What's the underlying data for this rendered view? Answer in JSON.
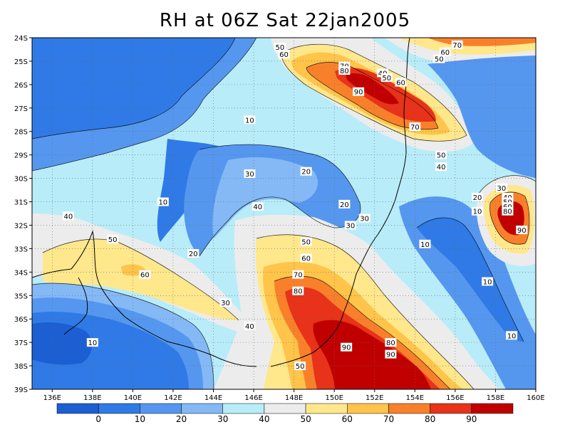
{
  "chart_data": {
    "type": "heatmap",
    "title": "RH at 06Z Sat 22jan2005",
    "x_ticks": [
      "136E",
      "138E",
      "140E",
      "142E",
      "144E",
      "146E",
      "148E",
      "150E",
      "152E",
      "154E",
      "156E",
      "158E",
      "160E"
    ],
    "y_ticks": [
      "24S",
      "25S",
      "26S",
      "27S",
      "28S",
      "29S",
      "30S",
      "31S",
      "32S",
      "33S",
      "34S",
      "35S",
      "36S",
      "37S",
      "38S",
      "39S"
    ],
    "xlim": [
      135,
      160
    ],
    "ylim": [
      -39,
      -24
    ],
    "grid": true,
    "colorbar": {
      "levels": [
        0,
        10,
        20,
        30,
        40,
        50,
        60,
        70,
        80,
        90
      ],
      "labels": [
        "0",
        "10",
        "20",
        "30",
        "40",
        "50",
        "60",
        "70",
        "80",
        "90"
      ],
      "colors": [
        "#1c5fd3",
        "#2f7ae6",
        "#5597ef",
        "#84b9f6",
        "#b8ecf8",
        "#ececec",
        "#ffe78c",
        "#ffc44a",
        "#f9802b",
        "#e83219",
        "#c00000"
      ]
    },
    "contour_labels": [
      {
        "text": "70",
        "lon": 156.1,
        "lat": -24.3
      },
      {
        "text": "60",
        "lon": 155.5,
        "lat": -24.6
      },
      {
        "text": "50",
        "lon": 155.2,
        "lat": -24.9
      },
      {
        "text": "50",
        "lon": 147.3,
        "lat": -24.4
      },
      {
        "text": "60",
        "lon": 147.5,
        "lat": -24.7
      },
      {
        "text": "70",
        "lon": 150.5,
        "lat": -25.2
      },
      {
        "text": "80",
        "lon": 150.5,
        "lat": -25.4
      },
      {
        "text": "40",
        "lon": 152.4,
        "lat": -25.5
      },
      {
        "text": "50",
        "lon": 152.6,
        "lat": -25.7
      },
      {
        "text": "90",
        "lon": 151.2,
        "lat": -26.3
      },
      {
        "text": "60",
        "lon": 153.3,
        "lat": -25.9
      },
      {
        "text": "70",
        "lon": 154.0,
        "lat": -27.8
      },
      {
        "text": "50",
        "lon": 155.3,
        "lat": -29.0
      },
      {
        "text": "40",
        "lon": 155.3,
        "lat": -29.5
      },
      {
        "text": "10",
        "lon": 145.8,
        "lat": -27.5
      },
      {
        "text": "20",
        "lon": 148.6,
        "lat": -29.7
      },
      {
        "text": "30",
        "lon": 145.8,
        "lat": -29.8
      },
      {
        "text": "10",
        "lon": 141.5,
        "lat": -31.0
      },
      {
        "text": "20",
        "lon": 150.5,
        "lat": -31.1
      },
      {
        "text": "40",
        "lon": 146.2,
        "lat": -31.2
      },
      {
        "text": "30",
        "lon": 151.5,
        "lat": -31.7
      },
      {
        "text": "30",
        "lon": 150.8,
        "lat": -32.0
      },
      {
        "text": "40",
        "lon": 136.8,
        "lat": -31.6
      },
      {
        "text": "50",
        "lon": 139.0,
        "lat": -32.6
      },
      {
        "text": "20",
        "lon": 143.0,
        "lat": -33.2
      },
      {
        "text": "50",
        "lon": 148.6,
        "lat": -32.7
      },
      {
        "text": "60",
        "lon": 148.6,
        "lat": -33.4
      },
      {
        "text": "60",
        "lon": 140.6,
        "lat": -34.1
      },
      {
        "text": "70",
        "lon": 148.2,
        "lat": -34.1
      },
      {
        "text": "80",
        "lon": 148.2,
        "lat": -34.8
      },
      {
        "text": "30",
        "lon": 144.6,
        "lat": -35.3
      },
      {
        "text": "40",
        "lon": 145.8,
        "lat": -36.3
      },
      {
        "text": "10",
        "lon": 138.0,
        "lat": -37.0
      },
      {
        "text": "90",
        "lon": 150.6,
        "lat": -37.2
      },
      {
        "text": "80",
        "lon": 152.8,
        "lat": -37.0
      },
      {
        "text": "90",
        "lon": 152.8,
        "lat": -37.5
      },
      {
        "text": "50",
        "lon": 148.3,
        "lat": -38.0
      },
      {
        "text": "30",
        "lon": 158.3,
        "lat": -30.4
      },
      {
        "text": "40",
        "lon": 158.6,
        "lat": -30.8
      },
      {
        "text": "50",
        "lon": 158.6,
        "lat": -31.0
      },
      {
        "text": "60",
        "lon": 158.6,
        "lat": -31.2
      },
      {
        "text": "80",
        "lon": 158.6,
        "lat": -31.4
      },
      {
        "text": "20",
        "lon": 157.1,
        "lat": -30.8
      },
      {
        "text": "10",
        "lon": 157.1,
        "lat": -31.4
      },
      {
        "text": "90",
        "lon": 159.3,
        "lat": -32.2
      },
      {
        "text": "10",
        "lon": 154.5,
        "lat": -32.8
      },
      {
        "text": "10",
        "lon": 157.6,
        "lat": -34.4
      },
      {
        "text": "10",
        "lon": 158.8,
        "lat": -36.7
      }
    ]
  }
}
